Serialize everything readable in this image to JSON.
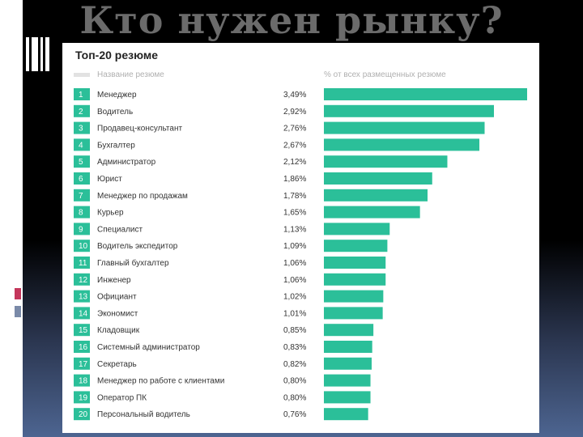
{
  "slide": {
    "title": "Кто нужен рынку?"
  },
  "chart_data": {
    "type": "bar",
    "orientation": "horizontal",
    "title": "Топ-20 резюме",
    "column_headers": [
      "Название резюме",
      "% от всех размещенных резюме"
    ],
    "ranks": [
      "1",
      "2",
      "3",
      "4",
      "5",
      "6",
      "7",
      "8",
      "9",
      "10",
      "11",
      "12",
      "13",
      "14",
      "15",
      "16",
      "17",
      "18",
      "19",
      "20"
    ],
    "categories": [
      "Менеджер",
      "Водитель",
      "Продавец-консультант",
      "Бухгалтер",
      "Администратор",
      "Юрист",
      "Менеджер по продажам",
      "Курьер",
      "Специалист",
      "Водитель экспедитор",
      "Главный бухгалтер",
      "Инженер",
      "Официант",
      "Экономист",
      "Кладовщик",
      "Системный администратор",
      "Секретарь",
      "Менеджер по работе с клиентами",
      "Оператор ПК",
      "Персональный водитель"
    ],
    "values": [
      3.49,
      2.92,
      2.76,
      2.67,
      2.12,
      1.86,
      1.78,
      1.65,
      1.13,
      1.09,
      1.06,
      1.06,
      1.02,
      1.01,
      0.85,
      0.83,
      0.82,
      0.8,
      0.8,
      0.76
    ],
    "value_labels": [
      "3,49%",
      "2,92%",
      "2,76%",
      "2,67%",
      "2,12%",
      "1,86%",
      "1,78%",
      "1,65%",
      "1,13%",
      "1,09%",
      "1,06%",
      "1,06%",
      "1,02%",
      "1,01%",
      "0,85%",
      "0,83%",
      "0,82%",
      "0,80%",
      "0,80%",
      "0,76%"
    ],
    "bar_color": "#2bbf99",
    "rank_color": "#2bbf99",
    "grid": false,
    "legend": "none"
  }
}
